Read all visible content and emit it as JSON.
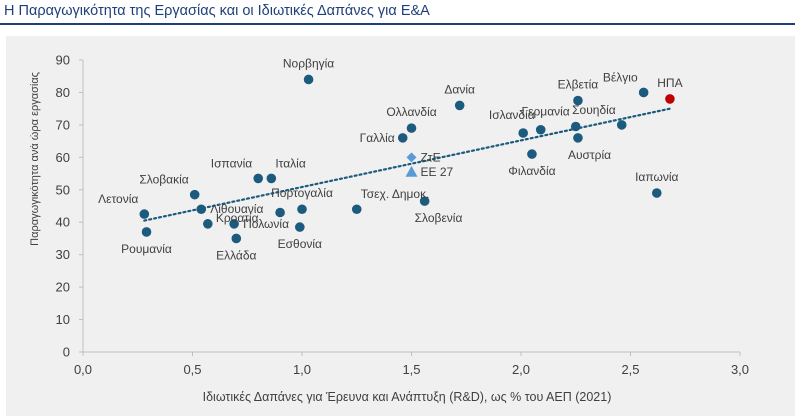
{
  "page": {
    "title": "Η Παραγωγικότητα της Εργασίας και οι Ιδιωτικές Δαπάνες για Ε&Α"
  },
  "colors": {
    "title": "#1f3f7a",
    "point": "#1c5a7e",
    "usa_point": "#c00000",
    "eu_point": "#5b9bd5",
    "trend": "#1c5a7e",
    "axis_text": "#404040",
    "background": "#f0f0f0"
  },
  "chart_data": {
    "type": "scatter",
    "title": "Η Παραγωγικότητα της Εργασίας και οι Ιδιωτικές Δαπάνες για Ε&Α",
    "xlabel": "Ιδιωτικές Δαπάνες για Έρευνα και Ανάπτυξη (R&D), ως % του ΑΕΠ (2021)",
    "ylabel": "Παραγωγικότητα ανά ώρα εργασίας",
    "xlim": [
      0,
      3
    ],
    "ylim": [
      0,
      90
    ],
    "xticks": [
      "0,0",
      "0,5",
      "1,0",
      "1,5",
      "2,0",
      "2,5",
      "3,0"
    ],
    "yticks": [
      "0",
      "10",
      "20",
      "30",
      "40",
      "50",
      "60",
      "70",
      "80",
      "90"
    ],
    "grid": false,
    "trendline": {
      "style": "dotted",
      "x": [
        0.28,
        2.68
      ],
      "y": [
        40.5,
        75
      ]
    },
    "points": [
      {
        "label": "Νορβηγία",
        "x": 1.03,
        "y": 84,
        "marker": "circle",
        "label_pos": "above"
      },
      {
        "label": "Βέλγιο",
        "x": 2.56,
        "y": 80,
        "marker": "circle",
        "label_pos": "above-left"
      },
      {
        "label": "ΗΠΑ",
        "x": 2.68,
        "y": 78,
        "marker": "circle-red",
        "label_pos": "above"
      },
      {
        "label": "Ελβετία",
        "x": 2.26,
        "y": 77.5,
        "marker": "circle",
        "label_pos": "above"
      },
      {
        "label": "Δανία",
        "x": 1.72,
        "y": 76,
        "marker": "circle",
        "label_pos": "above"
      },
      {
        "label": "Σουηδία",
        "x": 2.46,
        "y": 70,
        "marker": "circle",
        "label_pos": "above-left"
      },
      {
        "label": "Γερμανία",
        "x": 2.25,
        "y": 69.5,
        "marker": "circle",
        "label_pos": "above-left"
      },
      {
        "label": "Ολλανδία",
        "x": 1.5,
        "y": 69,
        "marker": "circle",
        "label_pos": "above"
      },
      {
        "label": "Ισλανδία",
        "x": 2.09,
        "y": 68.5,
        "marker": "circle",
        "label_pos": "above-left"
      },
      {
        "label": "",
        "x": 2.01,
        "y": 67.5,
        "marker": "circle",
        "label_pos": "none"
      },
      {
        "label": "Γαλλία",
        "x": 1.46,
        "y": 66,
        "marker": "circle",
        "label_pos": "left"
      },
      {
        "label": "Αυστρία",
        "x": 2.26,
        "y": 66,
        "marker": "circle",
        "label_pos": "below-right"
      },
      {
        "label": "Φιλανδία",
        "x": 2.05,
        "y": 61,
        "marker": "circle",
        "label_pos": "below"
      },
      {
        "label": "ΖτΕ",
        "x": 1.5,
        "y": 60,
        "marker": "diamond",
        "label_pos": "right"
      },
      {
        "label": "ΕΕ 27",
        "x": 1.5,
        "y": 55.5,
        "marker": "triangle",
        "label_pos": "right"
      },
      {
        "label": "Ιαπωνία",
        "x": 2.62,
        "y": 49,
        "marker": "circle",
        "label_pos": "above"
      },
      {
        "label": "Ισπανία",
        "x": 0.8,
        "y": 53.5,
        "marker": "circle",
        "label_pos": "above-left"
      },
      {
        "label": "Ιταλία",
        "x": 0.86,
        "y": 53.5,
        "marker": "circle",
        "label_pos": "above-right"
      },
      {
        "label": "Σλοβακία",
        "x": 0.51,
        "y": 48.5,
        "marker": "circle",
        "label_pos": "above-left"
      },
      {
        "label": "Τσεχ. Δημοκ.",
        "x": 1.25,
        "y": 44,
        "marker": "circle",
        "label_pos": "above-right"
      },
      {
        "label": "Σλοβενία",
        "x": 1.56,
        "y": 46.5,
        "marker": "circle",
        "label_pos": "below-right"
      },
      {
        "label": "Πορτογαλία",
        "x": 1.0,
        "y": 44,
        "marker": "circle",
        "label_pos": "above"
      },
      {
        "label": "Λιθουανία",
        "x": 0.54,
        "y": 44,
        "marker": "circle",
        "label_pos": "right"
      },
      {
        "label": "Λετονία",
        "x": 0.28,
        "y": 42.5,
        "marker": "circle",
        "label_pos": "above-left"
      },
      {
        "label": "",
        "x": 0.9,
        "y": 43,
        "marker": "circle",
        "label_pos": "none"
      },
      {
        "label": "Πολωνία",
        "x": 0.69,
        "y": 39.5,
        "marker": "circle",
        "label_pos": "right"
      },
      {
        "label": "Κροατία",
        "x": 0.57,
        "y": 39.5,
        "marker": "circle",
        "label_pos": "below-left"
      },
      {
        "label": "Εσθονία",
        "x": 0.99,
        "y": 38.5,
        "marker": "circle",
        "label_pos": "below"
      },
      {
        "label": "Ρουμανία",
        "x": 0.29,
        "y": 37,
        "marker": "circle",
        "label_pos": "below"
      },
      {
        "label": "Ελλάδα",
        "x": 0.7,
        "y": 35,
        "marker": "circle",
        "label_pos": "below"
      }
    ]
  }
}
